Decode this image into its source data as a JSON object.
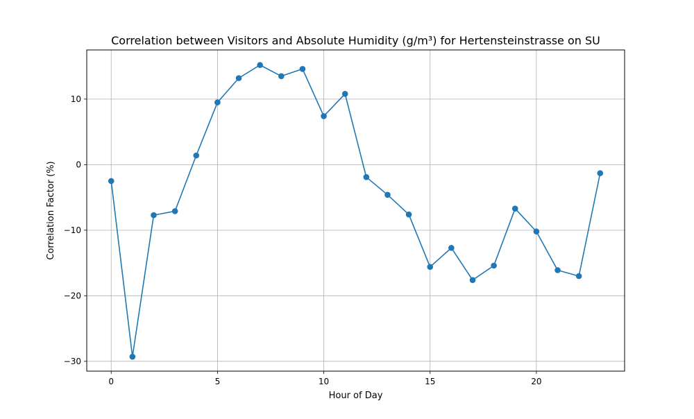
{
  "chart_data": {
    "type": "line",
    "title": "Correlation between Visitors and Absolute Humidity (g/m³) for Hertensteinstrasse on SU",
    "xlabel": "Hour of Day",
    "ylabel": "Correlation Factor (%)",
    "xlim": [
      -1.15,
      24.15
    ],
    "ylim": [
      -31.5,
      17.5
    ],
    "xticks": [
      0,
      5,
      10,
      15,
      20
    ],
    "xtick_labels": [
      "0",
      "5",
      "10",
      "15",
      "20"
    ],
    "yticks": [
      -30,
      -20,
      -10,
      0,
      10
    ],
    "ytick_labels": [
      "−30",
      "−20",
      "−10",
      "0",
      "10"
    ],
    "grid": true,
    "legend": false,
    "series": [
      {
        "color": "#1f77b4",
        "marker": "circle",
        "x": [
          0,
          1,
          2,
          3,
          4,
          5,
          6,
          7,
          8,
          9,
          10,
          11,
          12,
          13,
          14,
          15,
          16,
          17,
          18,
          19,
          20,
          21,
          22,
          23
        ],
        "y": [
          -2.5,
          -29.3,
          -7.7,
          -7.1,
          1.4,
          9.5,
          13.2,
          15.2,
          13.5,
          14.6,
          7.4,
          10.8,
          -1.9,
          -4.6,
          -7.6,
          -15.6,
          -12.7,
          -17.6,
          -15.4,
          -6.7,
          -10.2,
          -16.1,
          -17.0,
          -1.3
        ]
      }
    ]
  }
}
